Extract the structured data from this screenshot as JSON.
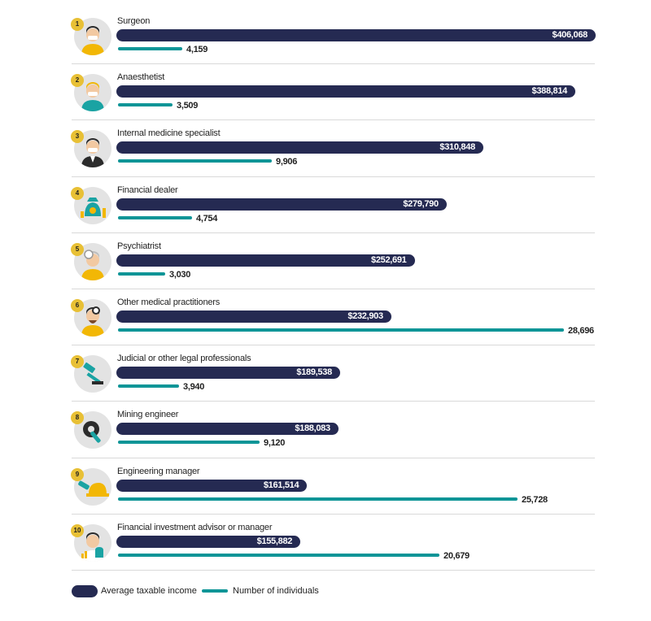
{
  "chart_data": {
    "type": "bar",
    "title": "",
    "categories": [
      "Surgeon",
      "Anaesthetist",
      "Internal medicine specialist",
      "Financial dealer",
      "Psychiatrist",
      "Other medical practitioners",
      "Judicial or other legal professionals",
      "Mining engineer",
      "Engineering manager",
      "Financial investment advisor or manager"
    ],
    "ranks": [
      "1",
      "2",
      "3",
      "4",
      "5",
      "6",
      "7",
      "8",
      "9",
      "10"
    ],
    "series": [
      {
        "name": "Average taxable income",
        "values": [
          406068,
          388814,
          310848,
          279790,
          252691,
          232903,
          189538,
          188083,
          161514,
          155882
        ],
        "labels": [
          "$406,068",
          "$388,814",
          "$310,848",
          "$279,790",
          "$252,691",
          "$232,903",
          "$189,538",
          "$188,083",
          "$161,514",
          "$155,882"
        ],
        "color": "#252a52"
      },
      {
        "name": "Number of individuals",
        "values": [
          4159,
          3509,
          9906,
          4754,
          3030,
          28696,
          3940,
          9120,
          25728,
          20679
        ],
        "labels": [
          "4,159",
          "3,509",
          "9,906",
          "4,754",
          "3,030",
          "28,696",
          "3,940",
          "9,120",
          "25,728",
          "20,679"
        ],
        "color": "#0e9597"
      }
    ],
    "icons": [
      "surgeon-icon",
      "anaesthetist-icon",
      "doctor-icon",
      "money-bag-icon",
      "psychiatrist-icon",
      "medical-practitioner-icon",
      "gavel-icon",
      "gear-wrench-icon",
      "hard-hat-icon",
      "investment-advisor-icon"
    ],
    "orientation": "horizontal",
    "xlabel": "",
    "ylabel": "",
    "grid": false,
    "legend": {
      "position": "bottom-left",
      "entries": [
        "Average taxable income",
        "Number of individuals"
      ]
    }
  }
}
